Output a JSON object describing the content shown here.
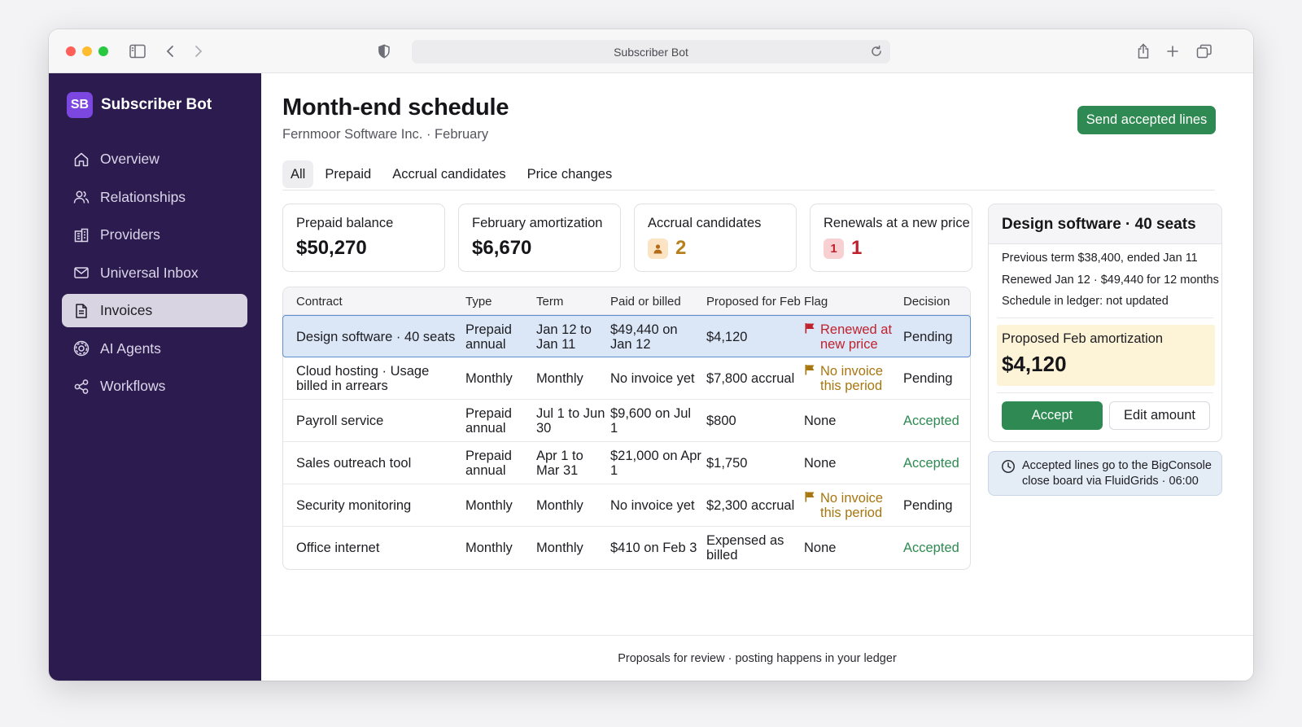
{
  "browser": {
    "url_title": "Subscriber Bot"
  },
  "brand": {
    "initials": "SB",
    "name": "Subscriber Bot"
  },
  "nav": [
    {
      "label": "Overview",
      "icon": "home-icon"
    },
    {
      "label": "Relationships",
      "icon": "people-icon"
    },
    {
      "label": "Providers",
      "icon": "building-icon"
    },
    {
      "label": "Universal Inbox",
      "icon": "mail-icon"
    },
    {
      "label": "Invoices",
      "icon": "document-icon",
      "active": true
    },
    {
      "label": "AI Agents",
      "icon": "gear-icon"
    },
    {
      "label": "Workflows",
      "icon": "workflow-icon"
    }
  ],
  "header": {
    "title": "Month-end schedule",
    "subtitle": "Fernmoor Software Inc. · February",
    "send_button": "Send accepted lines"
  },
  "tabs": [
    "All",
    "Prepaid",
    "Accrual candidates",
    "Price changes"
  ],
  "stats": {
    "prepaid_balance": {
      "label": "Prepaid balance",
      "value": "$50,270"
    },
    "feb_amortization": {
      "label": "February amortization",
      "value": "$6,670"
    },
    "accrual_candidates": {
      "label": "Accrual candidates",
      "value": "2"
    },
    "renewals": {
      "label": "Renewals at a new price",
      "badge": "1",
      "value": "1"
    }
  },
  "table": {
    "headers": {
      "contract": "Contract",
      "type": "Type",
      "term": "Term",
      "paid": "Paid or billed",
      "proposed": "Proposed for Feb",
      "flag": "Flag",
      "decision": "Decision"
    },
    "rows": [
      {
        "contract": "Design software · 40 seats",
        "type": "Prepaid annual",
        "term": "Jan 12 to Jan 11",
        "paid": "$49,440 on Jan 12",
        "proposed": "$4,120",
        "flag": "Renewed at new price",
        "flag_kind": "red",
        "decision": "Pending"
      },
      {
        "contract": "Cloud hosting · Usage billed in arrears",
        "type": "Monthly",
        "term": "Monthly",
        "paid": "No invoice yet",
        "proposed": "$7,800 accrual",
        "flag": "No invoice this period",
        "flag_kind": "amber",
        "decision": "Pending"
      },
      {
        "contract": "Payroll service",
        "type": "Prepaid annual",
        "term": "Jul 1 to Jun 30",
        "paid": "$9,600 on Jul 1",
        "proposed": "$800",
        "flag": "None",
        "flag_kind": "none",
        "decision": "Accepted"
      },
      {
        "contract": "Sales outreach tool",
        "type": "Prepaid annual",
        "term": "Apr 1 to Mar 31",
        "paid": "$21,000 on Apr 1",
        "proposed": "$1,750",
        "flag": "None",
        "flag_kind": "none",
        "decision": "Accepted"
      },
      {
        "contract": "Security monitoring",
        "type": "Monthly",
        "term": "Monthly",
        "paid": "No invoice yet",
        "proposed": "$2,300 accrual",
        "flag": "No invoice this period",
        "flag_kind": "amber",
        "decision": "Pending"
      },
      {
        "contract": "Office internet",
        "type": "Monthly",
        "term": "Monthly",
        "paid": "$410 on Feb 3",
        "proposed": "Expensed as billed",
        "flag": "None",
        "flag_kind": "none",
        "decision": "Accepted"
      }
    ]
  },
  "detail": {
    "title": "Design software · 40 seats",
    "line1": "Previous term $38,400, ended Jan 11",
    "line2": "Renewed Jan 12 · $49,440 for 12 months",
    "line3": "Schedule in ledger: not updated",
    "proposed_label": "Proposed Feb amortization",
    "proposed_value": "$4,120",
    "accept": "Accept",
    "edit": "Edit amount"
  },
  "note": "Accepted lines go to the BigConsole close board via FluidGrids · 06:00",
  "footer": "Proposals for review · posting happens in your ledger",
  "colors": {
    "sidebar": "#2b1b4e",
    "accent_green": "#2e8a52",
    "brand_purple": "#7b47e0",
    "flag_red": "#c0222d",
    "flag_amber": "#a8760f",
    "selected_row": "#dbe7f7"
  }
}
